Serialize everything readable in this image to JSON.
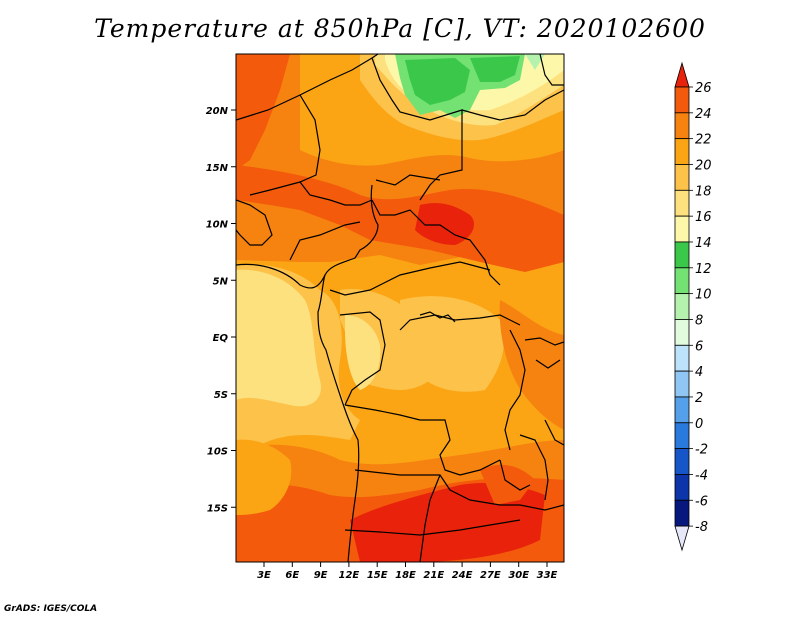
{
  "title": "Temperature at 850hPa [C], VT: 2020102600",
  "credit": "GrADS: IGES/COLA",
  "lat_ticks": [
    "20N",
    "15N",
    "10N",
    "5N",
    "EQ",
    "5S",
    "10S",
    "15S"
  ],
  "lon_ticks": [
    "3E",
    "6E",
    "9E",
    "12E",
    "15E",
    "18E",
    "21E",
    "24E",
    "27E",
    "30E",
    "33E"
  ],
  "colorbar": {
    "labels": [
      "26",
      "24",
      "22",
      "20",
      "18",
      "16",
      "14",
      "12",
      "10",
      "8",
      "6",
      "4",
      "2",
      "0",
      "-2",
      "-4",
      "-6",
      "-8"
    ],
    "colors": [
      "#e9230b",
      "#f35a0c",
      "#f6820f",
      "#fba414",
      "#fcc24a",
      "#fde17f",
      "#fdf8a9",
      "#3bc84a",
      "#73e273",
      "#b4f2ad",
      "#e2fbde",
      "#bde3fa",
      "#8fc6f4",
      "#55a0ea",
      "#2a79dd",
      "#1656c9",
      "#0b35a8",
      "#06187e",
      "#020a55",
      "#e6e8fa"
    ]
  }
}
